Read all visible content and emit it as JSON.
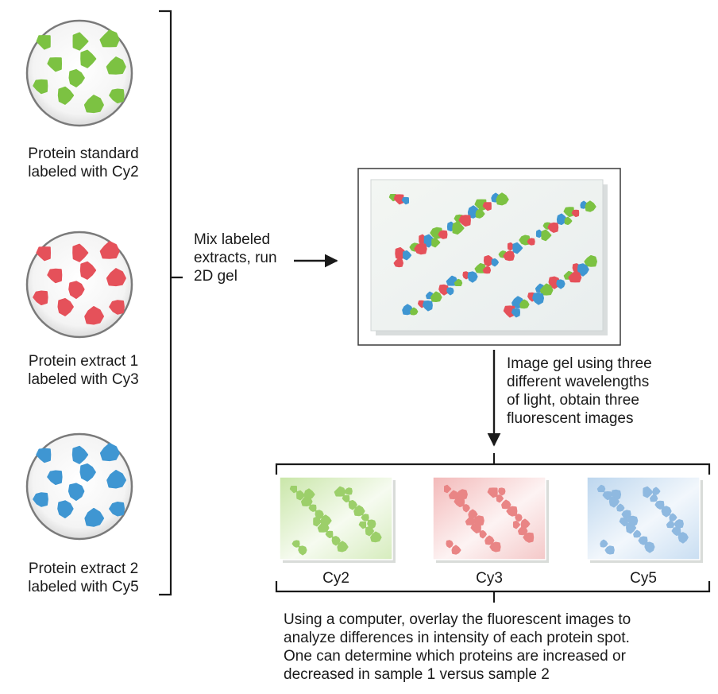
{
  "samples": [
    {
      "label": "Protein standard\nlabeled with Cy2",
      "color": "#7cc242",
      "dye": "Cy2"
    },
    {
      "label": "Protein extract 1\nlabeled with Cy3",
      "color": "#e5515a",
      "dye": "Cy3"
    },
    {
      "label": "Protein extract 2\nlabeled with Cy5",
      "color": "#3f96d2",
      "dye": "Cy5"
    }
  ],
  "steps": {
    "mix": "Mix labeled\nextracts, run\n2D gel",
    "image": "Image gel using three\ndifferent wavelengths\nof light, obtain three\nfluorescent images",
    "overlay": "Using a computer, overlay the fluorescent images to\nanalyze differences in intensity of each protein spot.\nOne can determine which proteins are increased or\ndecreased in sample 1 versus sample 2"
  },
  "images": [
    {
      "label": "Cy2",
      "tint": "#c9e6a8",
      "spot": "#9ccf6a"
    },
    {
      "label": "Cy3",
      "tint": "#f3b9b9",
      "spot": "#e98585"
    },
    {
      "label": "Cy5",
      "tint": "#bcd6ee",
      "spot": "#8fb9e0"
    }
  ]
}
